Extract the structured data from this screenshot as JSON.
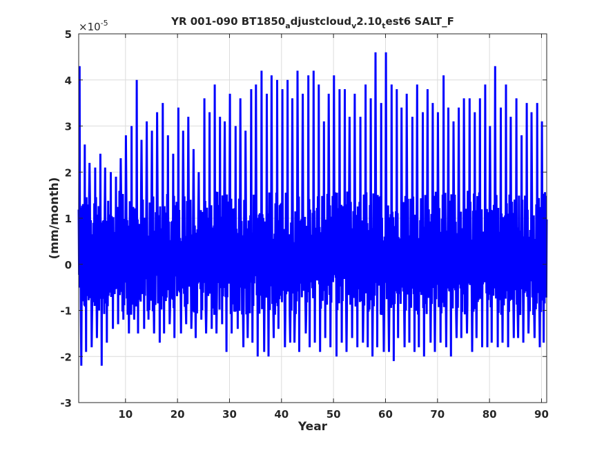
{
  "chart_data": {
    "type": "line",
    "title": {
      "parts": [
        {
          "text": "YR 001-090 BT1850",
          "sub": false
        },
        {
          "text": "a",
          "sub": true
        },
        {
          "text": "djustcloud",
          "sub": false
        },
        {
          "text": "v",
          "sub": true
        },
        {
          "text": "2.10",
          "sub": false
        },
        {
          "text": "t",
          "sub": true
        },
        {
          "text": "est6 SALT_F",
          "sub": false
        }
      ]
    },
    "xlabel": "Year",
    "ylabel": "(mm/month)",
    "y_exponent": {
      "base": "×10",
      "power": "-5"
    },
    "xlim": [
      1,
      91
    ],
    "ylim": [
      -3,
      5
    ],
    "xticks": [
      10,
      20,
      30,
      40,
      50,
      60,
      70,
      80,
      90
    ],
    "yticks": [
      -3,
      -2,
      -1,
      0,
      1,
      2,
      3,
      4,
      5
    ],
    "grid": true,
    "series_color": "#0000ff",
    "series": [
      {
        "sampling": "monthly",
        "yearly_max": [
          4.3,
          2.6,
          2.2,
          2.1,
          2.4,
          2.1,
          2.0,
          1.9,
          2.3,
          2.8,
          3.0,
          4.0,
          2.7,
          3.1,
          2.9,
          3.3,
          3.5,
          2.8,
          2.4,
          3.4,
          2.9,
          3.2,
          2.5,
          2.0,
          3.6,
          3.3,
          3.9,
          3.2,
          3.1,
          3.7,
          3.0,
          3.6,
          2.9,
          3.8,
          3.9,
          4.2,
          3.7,
          4.1,
          4.0,
          3.8,
          4.0,
          3.6,
          4.2,
          3.7,
          4.1,
          4.2,
          3.9,
          3.1,
          3.7,
          4.1,
          3.8,
          3.8,
          3.2,
          3.7,
          3.2,
          3.9,
          3.6,
          4.6,
          3.5,
          4.6,
          3.9,
          3.8,
          3.4,
          3.7,
          3.2,
          3.9,
          3.3,
          3.8,
          3.5,
          3.3,
          4.1,
          3.4,
          3.1,
          3.4,
          3.6,
          3.6,
          3.3,
          3.6,
          3.9,
          3.0,
          4.3,
          3.4,
          3.9,
          3.2,
          3.6,
          2.8,
          3.5,
          3.3,
          3.5,
          3.1,
          3.8
        ],
        "yearly_min": [
          -2.2,
          -1.9,
          -1.8,
          -1.6,
          -2.2,
          -1.7,
          -1.4,
          -1.3,
          -1.2,
          -1.5,
          -1.2,
          -1.5,
          -1.4,
          -1.2,
          -1.5,
          -1.7,
          -1.5,
          -1.3,
          -1.6,
          -1.5,
          -1.3,
          -1.4,
          -1.6,
          -1.2,
          -1.5,
          -1.4,
          -1.5,
          -1.3,
          -1.9,
          -1.5,
          -1.4,
          -1.8,
          -1.6,
          -1.7,
          -2.0,
          -1.9,
          -2.0,
          -1.6,
          -1.4,
          -1.8,
          -1.7,
          -1.7,
          -1.9,
          -1.5,
          -1.8,
          -1.7,
          -1.9,
          -1.6,
          -1.8,
          -2.0,
          -1.7,
          -1.9,
          -1.6,
          -1.8,
          -1.7,
          -1.8,
          -2.0,
          -1.8,
          -1.9,
          -1.9,
          -2.1,
          -1.6,
          -1.8,
          -1.7,
          -1.9,
          -1.8,
          -2.0,
          -1.7,
          -1.9,
          -1.7,
          -1.8,
          -2.0,
          -1.6,
          -1.6,
          -1.5,
          -1.9,
          -1.6,
          -1.8,
          -1.8,
          -1.7,
          -1.8,
          -1.7,
          -1.8,
          -1.6,
          -1.6,
          -1.7,
          -1.5,
          -1.6,
          -1.8,
          -1.7,
          -1.6
        ],
        "typical_range": [
          -0.9,
          1.6
        ]
      }
    ]
  }
}
